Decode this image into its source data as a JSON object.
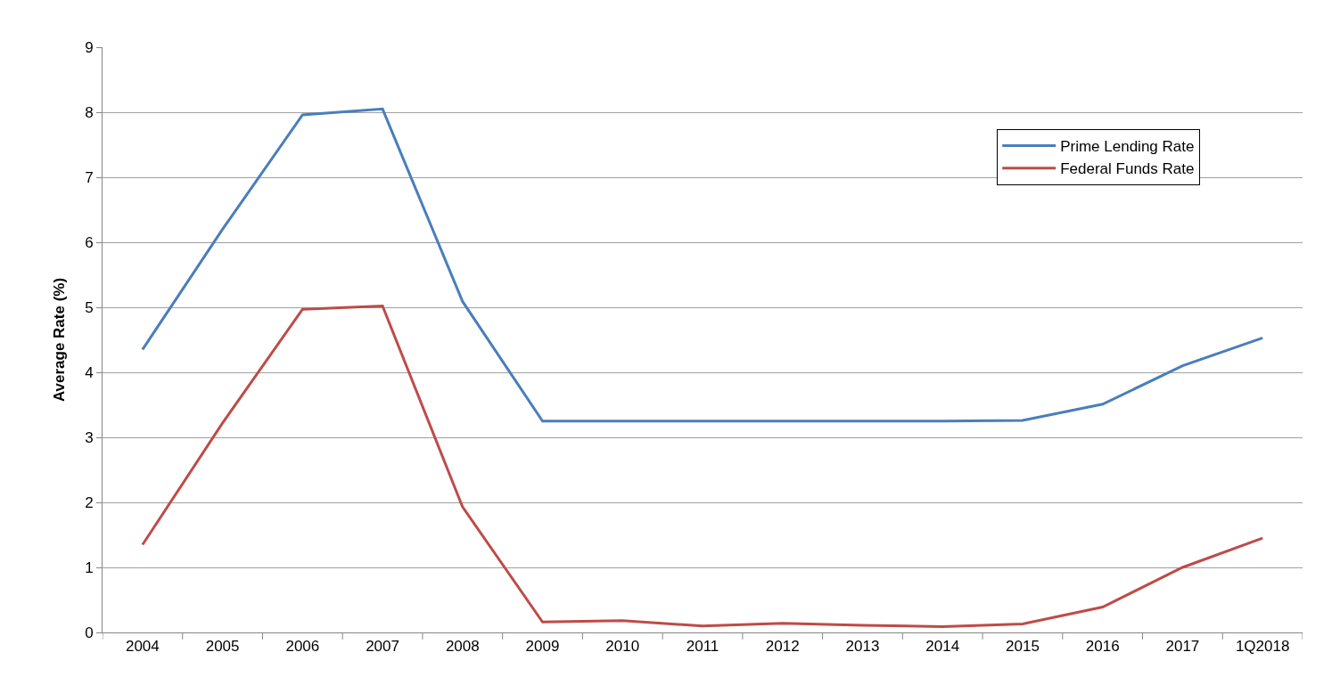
{
  "chart_data": {
    "type": "line",
    "ylabel": "Average Rate (%)",
    "categories": [
      "2004",
      "2005",
      "2006",
      "2007",
      "2008",
      "2009",
      "2010",
      "2011",
      "2012",
      "2013",
      "2014",
      "2015",
      "2016",
      "2017",
      "1Q2018"
    ],
    "series": [
      {
        "name": "Prime Lending Rate",
        "color": "#4a7ebb",
        "values": [
          4.35,
          6.2,
          7.96,
          8.05,
          5.09,
          3.25,
          3.25,
          3.25,
          3.25,
          3.25,
          3.25,
          3.26,
          3.51,
          4.1,
          4.53
        ]
      },
      {
        "name": "Federal Funds Rate",
        "color": "#be4b48",
        "values": [
          1.35,
          3.22,
          4.97,
          5.02,
          1.93,
          0.16,
          0.18,
          0.1,
          0.14,
          0.11,
          0.09,
          0.13,
          0.39,
          1.0,
          1.45
        ]
      }
    ],
    "ylim": [
      0,
      9
    ],
    "yticks": [
      0,
      1,
      2,
      3,
      4,
      5,
      6,
      7,
      8,
      9
    ],
    "grid": "y",
    "legend": "top right",
    "marker": "none",
    "line_style": "solid"
  }
}
